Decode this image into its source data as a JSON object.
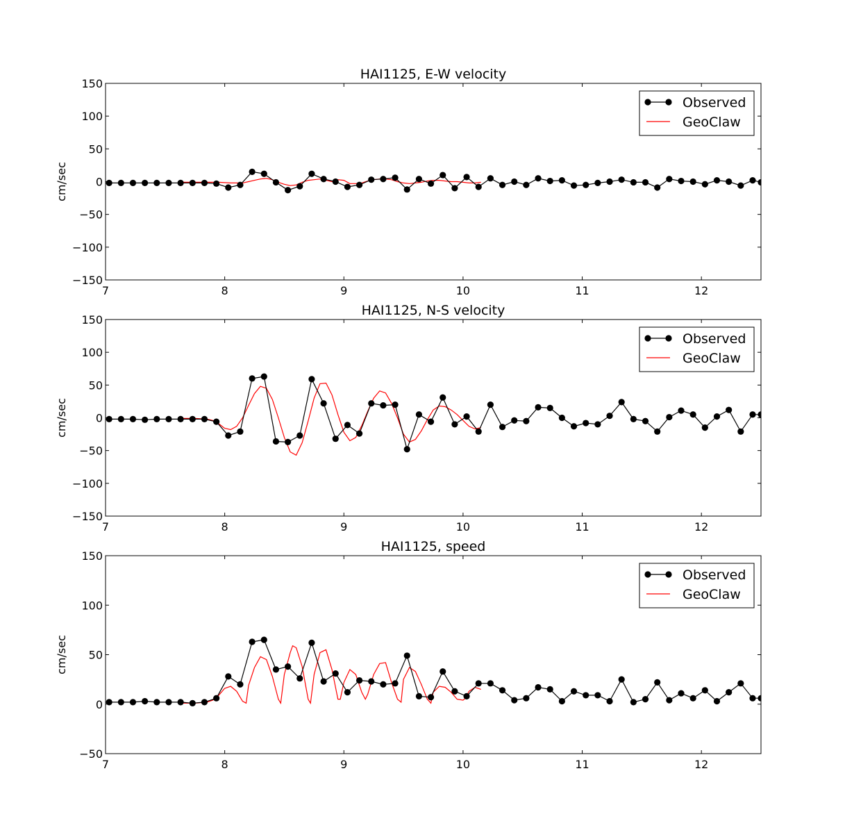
{
  "chart_data": [
    {
      "type": "line",
      "title": "HAI1125, E-W velocity",
      "xlabel": "",
      "ylabel": "cm/sec",
      "xlim": [
        7,
        12.5
      ],
      "ylim": [
        -150,
        150
      ],
      "xticks": [
        7,
        8,
        9,
        10,
        11,
        12
      ],
      "yticks": [
        -150,
        -100,
        -50,
        0,
        50,
        100,
        150
      ],
      "xtick_labels": [
        "7",
        "8",
        "9",
        "10",
        "11",
        "12"
      ],
      "ytick_labels": [
        "−150",
        "−100",
        "−50",
        "0",
        "50",
        "100",
        "150"
      ],
      "legend_position": "top-right",
      "series": [
        {
          "name": "Observed",
          "color": "#000000",
          "marker": "circle",
          "x": [
            7.03,
            7.13,
            7.23,
            7.33,
            7.43,
            7.53,
            7.63,
            7.73,
            7.83,
            7.93,
            8.03,
            8.13,
            8.23,
            8.33,
            8.43,
            8.53,
            8.63,
            8.73,
            8.83,
            8.93,
            9.03,
            9.13,
            9.23,
            9.33,
            9.43,
            9.53,
            9.63,
            9.73,
            9.83,
            9.93,
            10.03,
            10.13,
            10.23,
            10.33,
            10.43,
            10.53,
            10.63,
            10.73,
            10.83,
            10.93,
            11.03,
            11.13,
            11.23,
            11.33,
            11.43,
            11.53,
            11.63,
            11.73,
            11.83,
            11.93,
            12.03,
            12.13,
            12.23,
            12.33,
            12.43,
            12.5
          ],
          "y": [
            -2,
            -2,
            -2,
            -2,
            -2,
            -2,
            -2,
            -2,
            -2,
            -3,
            -9,
            -5,
            15,
            12,
            -1,
            -13,
            -7,
            12,
            4,
            0,
            -8,
            -5,
            3,
            4,
            6,
            -12,
            4,
            -3,
            10,
            -10,
            7,
            -8,
            5,
            -5,
            0,
            -5,
            5,
            1,
            2,
            -6,
            -5,
            -2,
            0,
            3,
            -1,
            -1,
            -9,
            4,
            1,
            0,
            -4,
            2,
            0,
            -6,
            2,
            -1
          ]
        },
        {
          "name": "GeoClaw",
          "color": "#ff0000",
          "marker": "none",
          "x": [
            7.65,
            7.75,
            7.85,
            7.95,
            8.05,
            8.15,
            8.2,
            8.25,
            8.3,
            8.35,
            8.4,
            8.45,
            8.5,
            8.55,
            8.6,
            8.65,
            8.7,
            8.75,
            8.8,
            8.85,
            8.9,
            8.95,
            9.0,
            9.05,
            9.1,
            9.15,
            9.2,
            9.25,
            9.3,
            9.35,
            9.4,
            9.45,
            9.5,
            9.55,
            9.6,
            9.65,
            9.7,
            9.75,
            9.8,
            9.85,
            9.9,
            9.95,
            10.0,
            10.05,
            10.1,
            10.15
          ],
          "y": [
            -1,
            -1,
            -1,
            -1,
            -2,
            -2,
            0,
            2,
            4,
            5,
            3,
            -1,
            -4,
            -6,
            -5,
            -1,
            2,
            3,
            4,
            2,
            0,
            3,
            2,
            -3,
            -3,
            -2,
            1,
            3,
            4,
            4,
            3,
            0,
            -2,
            -3,
            -2,
            -1,
            1,
            2,
            2,
            1,
            0,
            0,
            -1,
            -2,
            -2,
            -1
          ]
        }
      ]
    },
    {
      "type": "line",
      "title": "HAI1125, N-S velocity",
      "xlabel": "",
      "ylabel": "cm/sec",
      "xlim": [
        7,
        12.5
      ],
      "ylim": [
        -150,
        150
      ],
      "xticks": [
        7,
        8,
        9,
        10,
        11,
        12
      ],
      "yticks": [
        -150,
        -100,
        -50,
        0,
        50,
        100,
        150
      ],
      "xtick_labels": [
        "7",
        "8",
        "9",
        "10",
        "11",
        "12"
      ],
      "ytick_labels": [
        "−150",
        "−100",
        "−50",
        "0",
        "50",
        "100",
        "150"
      ],
      "legend_position": "top-right",
      "series": [
        {
          "name": "Observed",
          "color": "#000000",
          "marker": "circle",
          "x": [
            7.03,
            7.13,
            7.23,
            7.33,
            7.43,
            7.53,
            7.63,
            7.73,
            7.83,
            7.93,
            8.03,
            8.13,
            8.23,
            8.33,
            8.43,
            8.53,
            8.63,
            8.73,
            8.83,
            8.93,
            9.03,
            9.13,
            9.23,
            9.33,
            9.43,
            9.53,
            9.63,
            9.73,
            9.83,
            9.93,
            10.03,
            10.13,
            10.23,
            10.33,
            10.43,
            10.53,
            10.63,
            10.73,
            10.83,
            10.93,
            11.03,
            11.13,
            11.23,
            11.33,
            11.43,
            11.53,
            11.63,
            11.73,
            11.83,
            11.93,
            12.03,
            12.13,
            12.23,
            12.33,
            12.43,
            12.5
          ],
          "y": [
            -2,
            -2,
            -2,
            -3,
            -2,
            -2,
            -2,
            -2,
            -2,
            -6,
            -27,
            -21,
            60,
            63,
            -36,
            -37,
            -27,
            59,
            22,
            -32,
            -11,
            -24,
            22,
            19,
            20,
            -48,
            5,
            -6,
            31,
            -10,
            2,
            -21,
            20,
            -14,
            -4,
            -5,
            16,
            15,
            0,
            -13,
            -8,
            -10,
            3,
            24,
            -2,
            -5,
            -21,
            1,
            11,
            5,
            -15,
            2,
            12,
            -21,
            5,
            5
          ]
        },
        {
          "name": "GeoClaw",
          "color": "#ff0000",
          "marker": "none",
          "x": [
            7.65,
            7.75,
            7.85,
            7.9,
            7.95,
            8.0,
            8.05,
            8.1,
            8.15,
            8.2,
            8.25,
            8.3,
            8.35,
            8.4,
            8.45,
            8.5,
            8.55,
            8.6,
            8.65,
            8.7,
            8.75,
            8.8,
            8.85,
            8.9,
            8.95,
            9.0,
            9.05,
            9.1,
            9.15,
            9.2,
            9.25,
            9.3,
            9.35,
            9.4,
            9.45,
            9.5,
            9.55,
            9.6,
            9.65,
            9.7,
            9.75,
            9.8,
            9.85,
            9.9,
            9.95,
            10.0,
            10.05,
            10.1,
            10.15
          ],
          "y": [
            -1,
            -1,
            -2,
            -4,
            -9,
            -16,
            -18,
            -13,
            0,
            19,
            37,
            48,
            45,
            28,
            0,
            -30,
            -52,
            -57,
            -38,
            -5,
            30,
            52,
            53,
            35,
            5,
            -22,
            -35,
            -30,
            -12,
            10,
            30,
            41,
            38,
            22,
            0,
            -25,
            -37,
            -33,
            -20,
            -3,
            12,
            18,
            17,
            12,
            5,
            -4,
            -13,
            -17,
            -15
          ]
        }
      ]
    },
    {
      "type": "line",
      "title": "HAI1125, speed",
      "xlabel": "",
      "ylabel": "cm/sec",
      "xlim": [
        7,
        12.5
      ],
      "ylim": [
        -50,
        150
      ],
      "xticks": [
        7,
        8,
        9,
        10,
        11,
        12
      ],
      "yticks": [
        -50,
        0,
        50,
        100,
        150
      ],
      "xtick_labels": [
        "7",
        "8",
        "9",
        "10",
        "11",
        "12"
      ],
      "ytick_labels": [
        "−50",
        "0",
        "50",
        "100",
        "150"
      ],
      "legend_position": "top-right",
      "series": [
        {
          "name": "Observed",
          "color": "#000000",
          "marker": "circle",
          "x": [
            7.03,
            7.13,
            7.23,
            7.33,
            7.43,
            7.53,
            7.63,
            7.73,
            7.83,
            7.93,
            8.03,
            8.13,
            8.23,
            8.33,
            8.43,
            8.53,
            8.63,
            8.73,
            8.83,
            8.93,
            9.03,
            9.13,
            9.23,
            9.33,
            9.43,
            9.53,
            9.63,
            9.73,
            9.83,
            9.93,
            10.03,
            10.13,
            10.23,
            10.33,
            10.43,
            10.53,
            10.63,
            10.73,
            10.83,
            10.93,
            11.03,
            11.13,
            11.23,
            11.33,
            11.43,
            11.53,
            11.63,
            11.73,
            11.83,
            11.93,
            12.03,
            12.13,
            12.23,
            12.33,
            12.43,
            12.5
          ],
          "y": [
            2,
            2,
            2,
            3,
            2,
            2,
            2,
            1,
            2,
            6,
            28,
            20,
            63,
            65,
            35,
            38,
            26,
            62,
            23,
            31,
            12,
            24,
            23,
            20,
            21,
            49,
            8,
            7,
            33,
            13,
            8,
            21,
            21,
            14,
            4,
            6,
            17,
            15,
            3,
            13,
            9,
            9,
            3,
            25,
            2,
            5,
            22,
            4,
            11,
            6,
            14,
            3,
            12,
            21,
            6,
            6
          ]
        },
        {
          "name": "GeoClaw",
          "color": "#ff0000",
          "marker": "none",
          "x": [
            7.65,
            7.75,
            7.85,
            7.9,
            7.95,
            8.0,
            8.05,
            8.1,
            8.15,
            8.18,
            8.2,
            8.25,
            8.3,
            8.35,
            8.4,
            8.45,
            8.47,
            8.5,
            8.55,
            8.57,
            8.6,
            8.65,
            8.7,
            8.72,
            8.75,
            8.8,
            8.85,
            8.9,
            8.95,
            8.97,
            9.0,
            9.05,
            9.1,
            9.15,
            9.18,
            9.2,
            9.25,
            9.3,
            9.35,
            9.4,
            9.45,
            9.48,
            9.5,
            9.55,
            9.6,
            9.65,
            9.7,
            9.73,
            9.75,
            9.8,
            9.85,
            9.9,
            9.95,
            10.0,
            10.02,
            10.05,
            10.1,
            10.15
          ],
          "y": [
            1,
            1,
            2,
            4,
            9,
            16,
            18,
            13,
            3,
            1,
            19,
            37,
            48,
            45,
            28,
            5,
            1,
            30,
            52,
            59,
            57,
            38,
            5,
            1,
            30,
            52,
            55,
            35,
            5,
            5,
            22,
            35,
            30,
            12,
            5,
            10,
            30,
            41,
            42,
            22,
            5,
            2,
            25,
            37,
            33,
            20,
            5,
            1,
            12,
            18,
            17,
            12,
            5,
            4,
            6,
            13,
            17,
            15
          ]
        }
      ]
    }
  ]
}
